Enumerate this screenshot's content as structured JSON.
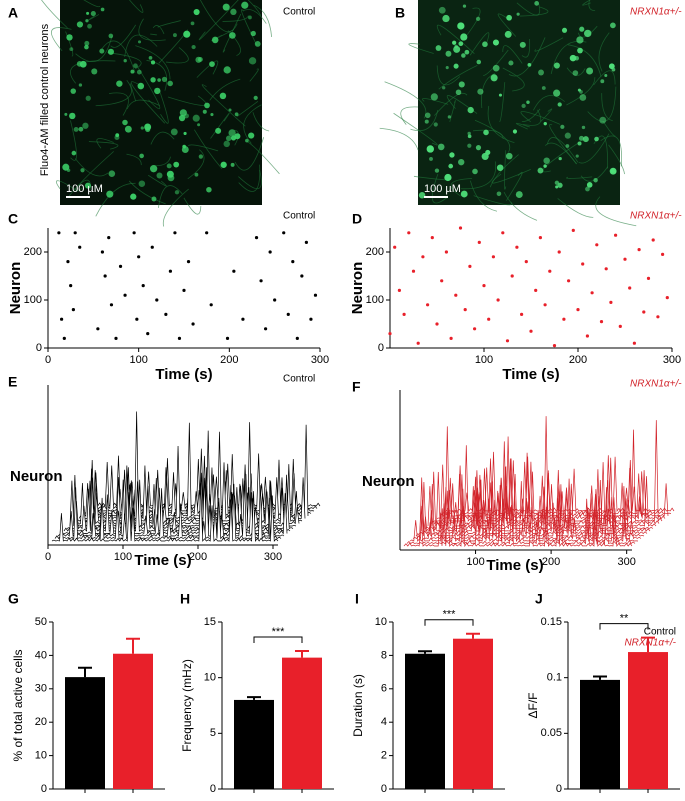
{
  "images": [
    {
      "panel": "A",
      "annotation": "Control",
      "side_label": "Fluo4-AM filled control neurons",
      "scale_bar": "100 µM"
    },
    {
      "panel": "B",
      "annotation": "NRXN1α+/-",
      "scale_bar": "100 µM"
    }
  ],
  "chart_data": [
    {
      "type": "raster",
      "panel": "C",
      "annotation": "Control",
      "xlabel": "Time (s)",
      "ylabel": "Neuron",
      "color": "#000000",
      "xlim": [
        0,
        300
      ],
      "ylim": [
        0,
        250
      ],
      "xticks": [
        0,
        100,
        200,
        300
      ],
      "yticks": [
        0,
        100,
        200
      ],
      "x": [
        12,
        15,
        18,
        22,
        25,
        28,
        30,
        35,
        55,
        60,
        63,
        67,
        70,
        75,
        80,
        85,
        95,
        98,
        100,
        105,
        110,
        115,
        120,
        130,
        135,
        140,
        145,
        150,
        155,
        160,
        175,
        180,
        198,
        205,
        215,
        230,
        235,
        240,
        245,
        250,
        260,
        265,
        270,
        275,
        280,
        285,
        290,
        295
      ],
      "values": [
        240,
        60,
        20,
        180,
        130,
        80,
        240,
        210,
        40,
        200,
        150,
        230,
        90,
        20,
        170,
        110,
        240,
        60,
        190,
        130,
        30,
        210,
        100,
        70,
        160,
        240,
        20,
        120,
        180,
        50,
        240,
        90,
        20,
        160,
        60,
        230,
        140,
        40,
        200,
        100,
        240,
        70,
        180,
        20,
        150,
        220,
        60,
        110
      ]
    },
    {
      "type": "raster",
      "panel": "D",
      "annotation": "NRXN1α+/-",
      "xlabel": "Time (s)",
      "ylabel": "Neuron",
      "color": "#e8202a",
      "xlim": [
        0,
        300
      ],
      "ylim": [
        0,
        250
      ],
      "xticks": [
        100,
        200,
        300
      ],
      "yticks": [
        0,
        100,
        200
      ],
      "x": [
        0,
        5,
        10,
        15,
        20,
        25,
        30,
        35,
        40,
        45,
        50,
        55,
        60,
        65,
        70,
        75,
        80,
        85,
        90,
        95,
        100,
        105,
        110,
        115,
        120,
        125,
        130,
        135,
        140,
        145,
        150,
        155,
        160,
        165,
        170,
        175,
        180,
        185,
        190,
        195,
        200,
        205,
        210,
        215,
        220,
        225,
        230,
        235,
        240,
        245,
        250,
        255,
        260,
        265,
        270,
        275,
        280,
        285,
        290,
        295
      ],
      "values": [
        30,
        210,
        120,
        70,
        240,
        160,
        10,
        190,
        90,
        230,
        50,
        140,
        200,
        20,
        110,
        250,
        80,
        170,
        40,
        220,
        130,
        60,
        190,
        100,
        240,
        15,
        150,
        210,
        70,
        180,
        35,
        120,
        230,
        90,
        160,
        5,
        200,
        60,
        140,
        245,
        80,
        175,
        25,
        115,
        215,
        55,
        165,
        95,
        235,
        45,
        185,
        125,
        10,
        205,
        75,
        145,
        225,
        65,
        195,
        105
      ]
    },
    {
      "type": "waterfall",
      "panel": "E",
      "annotation": "Control",
      "xlabel": "Time (s)",
      "ylabel": "Neuron",
      "color": "#000000",
      "xlim": [
        0,
        360
      ],
      "xticks": [
        0,
        100,
        200,
        300
      ]
    },
    {
      "type": "waterfall",
      "panel": "F",
      "annotation": "NRXN1α+/-",
      "xlabel": "Time (s)",
      "ylabel": "Neuron",
      "color": "#d2232a",
      "xlim": [
        0,
        360
      ],
      "xticks": [
        100,
        200,
        300
      ]
    },
    {
      "type": "bar",
      "panel": "G",
      "ylabel": "% of total active cells",
      "colors": [
        "#000000",
        "#e8202a"
      ],
      "values": [
        33.5,
        40.5
      ],
      "errors": [
        2.8,
        4.5
      ],
      "ylim": [
        0,
        50
      ],
      "yticks": [
        0,
        10,
        20,
        30,
        40,
        50
      ]
    },
    {
      "type": "bar",
      "panel": "H",
      "ylabel": "Frequency (mHz)",
      "colors": [
        "#000000",
        "#e8202a"
      ],
      "significance": "***",
      "values": [
        8,
        11.8
      ],
      "errors": [
        0.25,
        0.6
      ],
      "ylim": [
        0,
        15
      ],
      "yticks": [
        0,
        5,
        10,
        15
      ]
    },
    {
      "type": "bar",
      "panel": "I",
      "ylabel": "Duration (s)",
      "colors": [
        "#000000",
        "#e8202a"
      ],
      "significance": "***",
      "values": [
        8.1,
        9
      ],
      "errors": [
        0.15,
        0.3
      ],
      "ylim": [
        0,
        10
      ],
      "yticks": [
        0,
        2,
        4,
        6,
        8,
        10
      ]
    },
    {
      "type": "bar",
      "panel": "J",
      "ylabel": "ΔF/F",
      "colors": [
        "#000000",
        "#e8202a"
      ],
      "significance": "**",
      "legend": [
        "Control",
        "NRXN1α+/-"
      ],
      "values": [
        0.098,
        0.123
      ],
      "errors": [
        0.003,
        0.013
      ],
      "ylim": [
        0,
        0.15
      ],
      "yticks": [
        0,
        0.05,
        0.1,
        0.15
      ]
    }
  ]
}
